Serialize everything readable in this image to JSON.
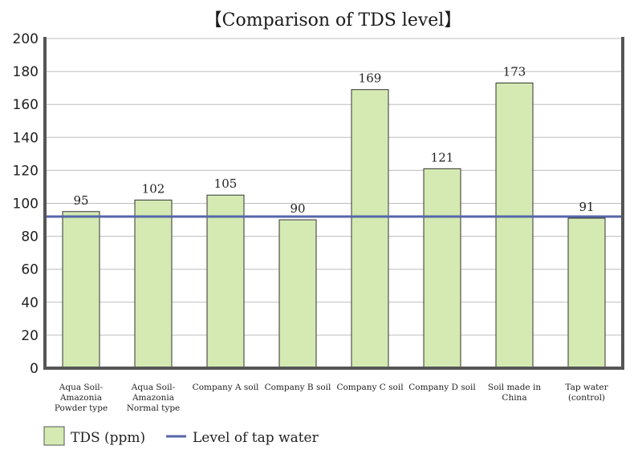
{
  "chart_data": {
    "type": "bar",
    "title": "【Comparison of TDS level】",
    "categories": [
      [
        "Aqua Soil-",
        "Amazonia",
        "Powder type"
      ],
      [
        "Aqua Soil-",
        "Amazonia",
        "Normal type"
      ],
      [
        "Company A soil"
      ],
      [
        "Company B soil"
      ],
      [
        "Company C soil"
      ],
      [
        "Company D soil"
      ],
      [
        "Soil made in",
        "China"
      ],
      [
        "Tap water",
        "(control)"
      ]
    ],
    "series": [
      {
        "name": "TDS (ppm)",
        "values": [
          95,
          102,
          105,
          90,
          169,
          121,
          173,
          91
        ],
        "color": "#d4eab2"
      }
    ],
    "reference_line": {
      "name": "Level of tap water",
      "value": 92,
      "color": "#5566aa"
    },
    "yticks": [
      0,
      20,
      40,
      60,
      80,
      100,
      120,
      140,
      160,
      180,
      200
    ],
    "ylim": [
      0,
      200
    ],
    "grid": true,
    "legend": "bottom-left"
  }
}
